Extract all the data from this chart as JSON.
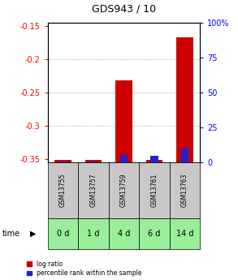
{
  "title": "GDS943 / 10",
  "samples": [
    "GSM13755",
    "GSM13757",
    "GSM13759",
    "GSM13761",
    "GSM13763"
  ],
  "time_labels": [
    "0 d",
    "1 d",
    "4 d",
    "6 d",
    "14 d"
  ],
  "log_ratio": [
    -0.351,
    -0.351,
    -0.232,
    -0.351,
    -0.168
  ],
  "percentile_rank": [
    0.5,
    0.5,
    5.0,
    4.5,
    10.0
  ],
  "left_ylim": [
    -0.355,
    -0.145
  ],
  "right_ylim": [
    0,
    100
  ],
  "left_yticks": [
    -0.35,
    -0.3,
    -0.25,
    -0.2,
    -0.15
  ],
  "right_yticks": [
    0,
    25,
    50,
    75,
    100
  ],
  "left_ytick_labels": [
    "-0.35",
    "-0.3",
    "-0.25",
    "-0.2",
    "-0.15"
  ],
  "right_ytick_labels": [
    "0",
    "25",
    "50",
    "75",
    "100%"
  ],
  "bar_color_red": "#cc0000",
  "bar_color_blue": "#2222cc",
  "grid_color": "#888888",
  "sample_bg_color": "#c8c8c8",
  "time_bg_color": "#99ee99",
  "baseline": -0.355,
  "bar_width": 0.55,
  "legend_red": "log ratio",
  "legend_blue": "percentile rank within the sample"
}
